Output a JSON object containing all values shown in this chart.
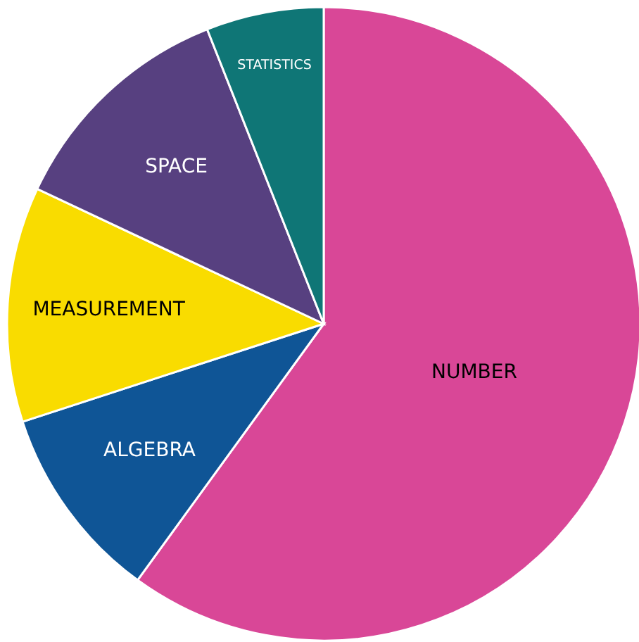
{
  "chart_data": {
    "type": "pie",
    "categories": [
      "NUMBER",
      "ALGEBRA",
      "MEASUREMENT",
      "SPACE",
      "STATISTICS"
    ],
    "values": [
      60,
      10,
      12,
      12,
      6
    ],
    "colors": [
      "#d94797",
      "#0f5596",
      "#f9dc00",
      "#574080",
      "#0f7676"
    ]
  }
}
